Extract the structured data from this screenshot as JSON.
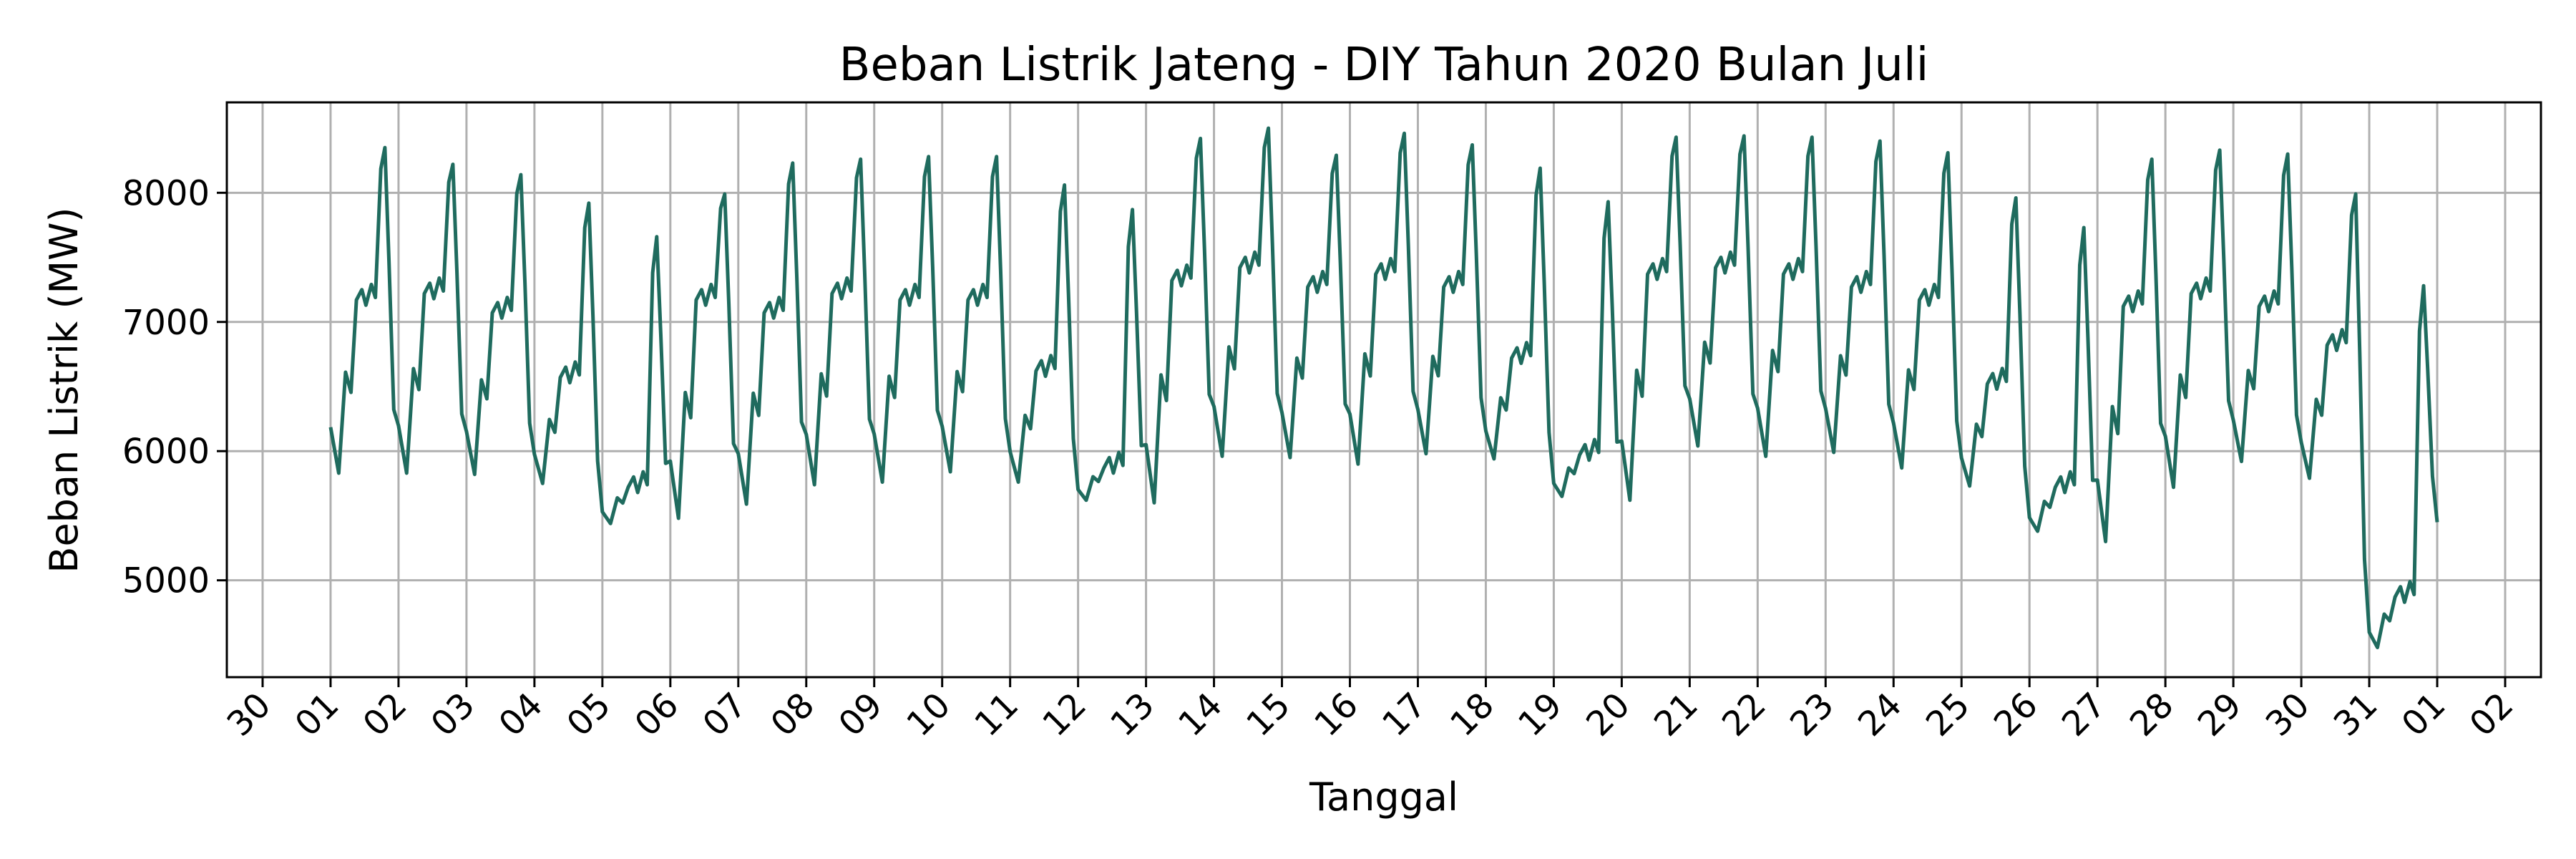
{
  "chart_data": {
    "type": "line",
    "title": "Beban Listrik Jateng - DIY Tahun 2020 Bulan Juli",
    "xlabel": "Tanggal",
    "ylabel": "Beban Listrik (MW)",
    "grid": true,
    "line_color": "#1f6b5e",
    "x_range": [
      "2020-06-30",
      "2020-08-02"
    ],
    "ylim": [
      4250,
      8700
    ],
    "x_tick_labels": [
      "30",
      "01",
      "02",
      "03",
      "04",
      "05",
      "06",
      "07",
      "08",
      "09",
      "10",
      "11",
      "12",
      "13",
      "14",
      "15",
      "16",
      "17",
      "18",
      "19",
      "20",
      "21",
      "22",
      "23",
      "24",
      "25",
      "26",
      "27",
      "28",
      "29",
      "30",
      "31",
      "01",
      "02"
    ],
    "y_ticks": [
      5000,
      6000,
      7000,
      8000
    ],
    "series": [
      {
        "daily_points": [
          {
            "date": "2020-07-01",
            "min": 5830,
            "evening_peak": 8350,
            "midday": 7250
          },
          {
            "date": "2020-07-02",
            "min": 5830,
            "evening_peak": 8220,
            "midday": 7300
          },
          {
            "date": "2020-07-03",
            "min": 5820,
            "evening_peak": 8140,
            "midday": 7150
          },
          {
            "date": "2020-07-04",
            "min": 5750,
            "evening_peak": 7920,
            "midday": 6650
          },
          {
            "date": "2020-07-05",
            "min": 5440,
            "evening_peak": 7660,
            "midday": 5800
          },
          {
            "date": "2020-07-06",
            "min": 5480,
            "evening_peak": 7990,
            "midday": 7250
          },
          {
            "date": "2020-07-07",
            "min": 5590,
            "evening_peak": 8230,
            "midday": 7150
          },
          {
            "date": "2020-07-08",
            "min": 5740,
            "evening_peak": 8260,
            "midday": 7300
          },
          {
            "date": "2020-07-09",
            "min": 5760,
            "evening_peak": 8280,
            "midday": 7250
          },
          {
            "date": "2020-07-10",
            "min": 5840,
            "evening_peak": 8280,
            "midday": 7250
          },
          {
            "date": "2020-07-11",
            "min": 5760,
            "evening_peak": 8060,
            "midday": 6700
          },
          {
            "date": "2020-07-12",
            "min": 5620,
            "evening_peak": 7870,
            "midday": 5950
          },
          {
            "date": "2020-07-13",
            "min": 5600,
            "evening_peak": 8420,
            "midday": 7400
          },
          {
            "date": "2020-07-14",
            "min": 5960,
            "evening_peak": 8500,
            "midday": 7500
          },
          {
            "date": "2020-07-15",
            "min": 5950,
            "evening_peak": 8290,
            "midday": 7350
          },
          {
            "date": "2020-07-16",
            "min": 5900,
            "evening_peak": 8460,
            "midday": 7450
          },
          {
            "date": "2020-07-17",
            "min": 5980,
            "evening_peak": 8370,
            "midday": 7350
          },
          {
            "date": "2020-07-18",
            "min": 5940,
            "evening_peak": 8190,
            "midday": 6800
          },
          {
            "date": "2020-07-19",
            "min": 5650,
            "evening_peak": 7930,
            "midday": 6050
          },
          {
            "date": "2020-07-20",
            "min": 5620,
            "evening_peak": 8430,
            "midday": 7450
          },
          {
            "date": "2020-07-21",
            "min": 6040,
            "evening_peak": 8440,
            "midday": 7500
          },
          {
            "date": "2020-07-22",
            "min": 5960,
            "evening_peak": 8430,
            "midday": 7450
          },
          {
            "date": "2020-07-23",
            "min": 5990,
            "evening_peak": 8400,
            "midday": 7350
          },
          {
            "date": "2020-07-24",
            "min": 5870,
            "evening_peak": 8310,
            "midday": 7250
          },
          {
            "date": "2020-07-25",
            "min": 5730,
            "evening_peak": 7960,
            "midday": 6600
          },
          {
            "date": "2020-07-26",
            "min": 5380,
            "evening_peak": 7730,
            "midday": 5800
          },
          {
            "date": "2020-07-27",
            "min": 5300,
            "evening_peak": 8260,
            "midday": 7200
          },
          {
            "date": "2020-07-28",
            "min": 5720,
            "evening_peak": 8330,
            "midday": 7300
          },
          {
            "date": "2020-07-29",
            "min": 5920,
            "evening_peak": 8300,
            "midday": 7200
          },
          {
            "date": "2020-07-30",
            "min": 5790,
            "evening_peak": 7990,
            "midday": 6900
          },
          {
            "date": "2020-07-31",
            "min": 4480,
            "evening_peak": 7280,
            "midday": 4950
          }
        ],
        "end_value": 5450
      }
    ]
  }
}
